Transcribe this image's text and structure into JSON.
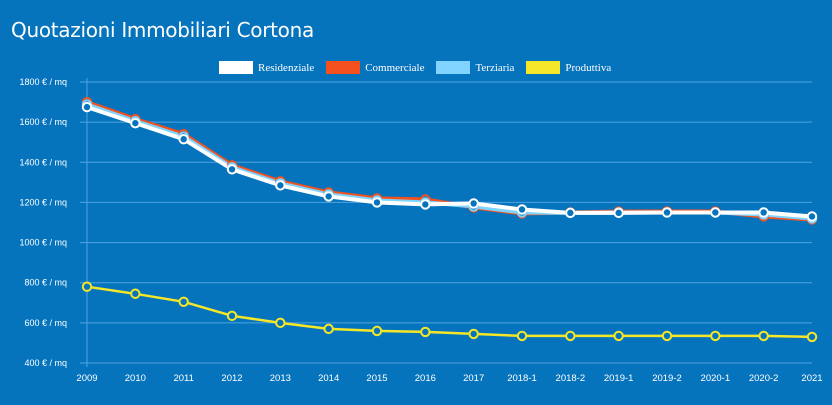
{
  "chart_data": {
    "type": "line",
    "title": "Quotazioni Immobiliari Cortona",
    "xlabel": "",
    "ylabel": "",
    "y_unit_suffix": " € / mq",
    "ylim": [
      400,
      1800
    ],
    "yticks": [
      400,
      600,
      800,
      1000,
      1200,
      1400,
      1600,
      1800
    ],
    "ytick_labels": [
      "400 € / mq",
      "600 € / mq",
      "800 € / mq",
      "1000 € / mq",
      "1200 € / mq",
      "1400 € / mq",
      "1600 € / mq",
      "1800 € / mq"
    ],
    "grid": true,
    "legend_position": "top-center",
    "categories": [
      "2009",
      "2010",
      "2011",
      "2012",
      "2013",
      "2014",
      "2015",
      "2016",
      "2017",
      "2018-1",
      "2018-2",
      "2019-1",
      "2019-2",
      "2020-1",
      "2020-2",
      "2021"
    ],
    "series": [
      {
        "name": "Commerciale",
        "color": "#F4511E",
        "values": [
          1700,
          1615,
          1540,
          1385,
          1305,
          1250,
          1220,
          1215,
          1175,
          1145,
          1150,
          1155,
          1155,
          1155,
          1130,
          1115
        ]
      },
      {
        "name": "Terziaria",
        "color": "#80D4FF",
        "values": [
          1688,
          1605,
          1528,
          1375,
          1295,
          1240,
          1210,
          1200,
          1180,
          1150,
          1148,
          1150,
          1150,
          1150,
          1140,
          1120
        ]
      },
      {
        "name": "Residenziale",
        "color": "#FFFFFF",
        "values": [
          1675,
          1595,
          1515,
          1365,
          1285,
          1230,
          1200,
          1190,
          1195,
          1165,
          1148,
          1148,
          1150,
          1150,
          1150,
          1130
        ]
      },
      {
        "name": "Produttiva",
        "color": "#F5E628",
        "values": [
          780,
          745,
          705,
          635,
          600,
          570,
          560,
          555,
          545,
          535,
          535,
          535,
          535,
          535,
          535,
          530
        ]
      }
    ]
  },
  "legend": [
    {
      "label": "Residenziale",
      "color": "#FFFFFF"
    },
    {
      "label": "Commerciale",
      "color": "#F4511E"
    },
    {
      "label": "Terziaria",
      "color": "#80D4FF"
    },
    {
      "label": "Produttiva",
      "color": "#F5E628"
    }
  ],
  "colors": {
    "background": "#0574BD",
    "grid": "#4FA3E0",
    "marker_fill": "#0574BD"
  }
}
